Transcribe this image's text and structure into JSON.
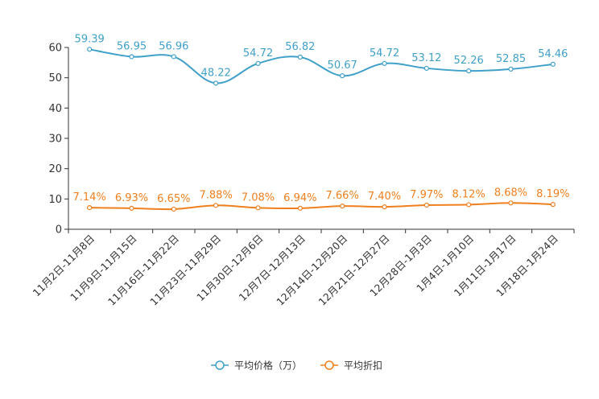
{
  "chart_data": {
    "type": "line",
    "title": "",
    "xlabel": "",
    "ylabel": "",
    "ylim": [
      0,
      60
    ],
    "yticks": [
      0,
      10,
      20,
      30,
      40,
      50,
      60
    ],
    "grid": false,
    "legend_position": "bottom-center",
    "categories": [
      "11月2日-11月8日",
      "11月9日-11月15日",
      "11月16日-11月22日",
      "11月23日-11月29日",
      "11月30日-12月6日",
      "12月7日-12月13日",
      "12月14日-12月20日",
      "12月21日-12月27日",
      "12月28日-1月3日",
      "1月4日-1月10日",
      "1月11日-1月17日",
      "1月18日-1月24日"
    ],
    "series": [
      {
        "name": "平均价格（万）",
        "color": "#3fa0c8",
        "values": [
          59.39,
          56.95,
          56.96,
          48.22,
          54.72,
          56.82,
          50.67,
          54.72,
          53.12,
          52.26,
          52.85,
          54.46
        ],
        "labels": [
          "59.39",
          "56.95",
          "56.96",
          "48.22",
          "54.72",
          "56.82",
          "50.67",
          "54.72",
          "53.12",
          "52.26",
          "52.85",
          "54.46"
        ]
      },
      {
        "name": "平均折扣",
        "color": "#f07f1e",
        "values": [
          7.14,
          6.93,
          6.65,
          7.88,
          7.08,
          6.94,
          7.66,
          7.4,
          7.97,
          8.12,
          8.68,
          8.19
        ],
        "labels": [
          "7.14%",
          "6.93%",
          "6.65%",
          "7.88%",
          "7.08%",
          "6.94%",
          "7.66%",
          "7.40%",
          "7.97%",
          "8.12%",
          "8.68%",
          "8.19%"
        ]
      }
    ]
  }
}
